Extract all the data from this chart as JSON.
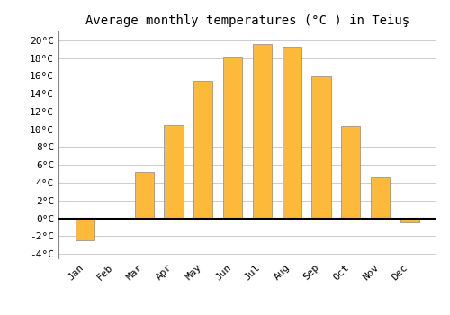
{
  "months": [
    "Jan",
    "Feb",
    "Mar",
    "Apr",
    "May",
    "Jun",
    "Jul",
    "Aug",
    "Sep",
    "Oct",
    "Nov",
    "Dec"
  ],
  "values": [
    -2.5,
    0.0,
    5.2,
    10.5,
    15.4,
    18.2,
    19.6,
    19.3,
    15.9,
    10.4,
    4.6,
    -0.5
  ],
  "bar_color": "#FDB93A",
  "bar_edge_color": "#888888",
  "title": "Average monthly temperatures (°C ) in Teiuş",
  "ylim": [
    -4.5,
    21
  ],
  "yticks": [
    -4,
    -2,
    0,
    2,
    4,
    6,
    8,
    10,
    12,
    14,
    16,
    18,
    20
  ],
  "background_color": "#ffffff",
  "plot_bg_color": "#ffffff",
  "grid_color": "#cccccc",
  "zero_line_color": "#000000",
  "title_fontsize": 10,
  "tick_fontsize": 8,
  "font_family": "monospace"
}
